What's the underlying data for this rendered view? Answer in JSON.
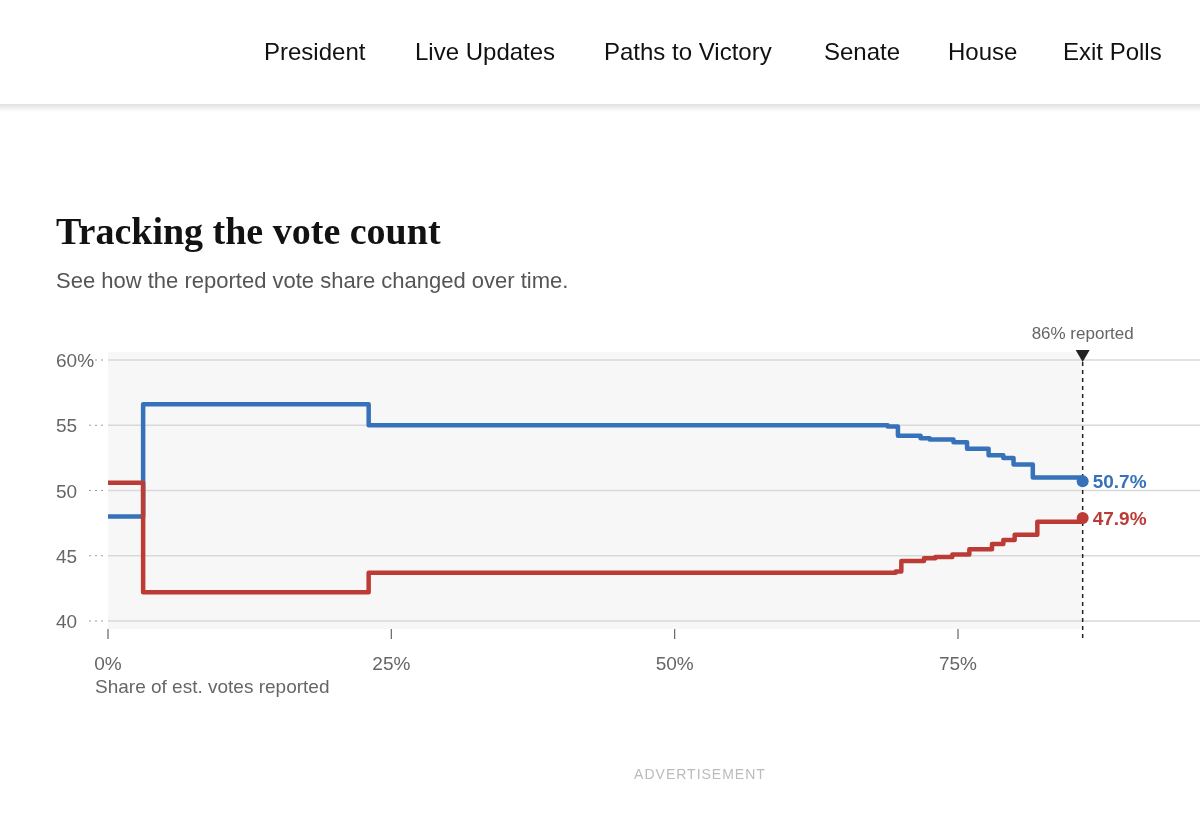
{
  "chart_data": {
    "type": "step",
    "title": "Tracking the vote count",
    "subtitle": "See how the reported vote share changed over time.",
    "xlabel": "Share of est. votes reported",
    "annotations": [
      "President",
      "Live Updates",
      "Paths to Victory",
      "Senate",
      "House",
      "Exit Polls",
      "ADVERTISEMENT"
    ],
    "xlim": [
      0,
      96
    ],
    "xticks": [
      {
        "value": 0,
        "label": "0%"
      },
      {
        "value": 25,
        "label": "25%"
      },
      {
        "value": 50,
        "label": "50%"
      },
      {
        "value": 75,
        "label": "75%"
      }
    ],
    "ylim": [
      40,
      60
    ],
    "yticks": [
      40,
      45,
      50,
      55,
      {
        "value": 60,
        "label": "60%"
      }
    ],
    "grid": "y",
    "bands": [
      {
        "axis": "x",
        "from": 0,
        "to": 86,
        "color": "#f7f7f7"
      }
    ],
    "ref_lines": [
      {
        "axis": "x",
        "value": 86,
        "label": "86% reported",
        "color": "#222222",
        "line_style": "dashed"
      }
    ],
    "series": [
      {
        "color": "#3672b9",
        "x": [
          0,
          3.1,
          23,
          68.8,
          69.7,
          71.7,
          72.5,
          74.6,
          75.8,
          77.7,
          79,
          79.9,
          81.6,
          86
        ],
        "values": [
          48.0,
          56.6,
          55.0,
          54.9,
          54.2,
          54.0,
          53.9,
          53.7,
          53.2,
          52.7,
          52.5,
          52.0,
          51.0,
          50.7
        ],
        "value_labels": [
          null,
          null,
          null,
          null,
          null,
          null,
          null,
          null,
          null,
          null,
          null,
          null,
          null,
          "50.7%"
        ]
      },
      {
        "color": "#bd3b35",
        "x": [
          0,
          3.1,
          23,
          69.5,
          70,
          72,
          73,
          74.5,
          76,
          78,
          79,
          80,
          82,
          86
        ],
        "values": [
          50.6,
          42.2,
          43.7,
          43.8,
          44.6,
          44.8,
          44.9,
          45.1,
          45.5,
          45.9,
          46.2,
          46.6,
          47.6,
          47.9
        ],
        "value_labels": [
          null,
          null,
          null,
          null,
          null,
          null,
          null,
          null,
          null,
          null,
          null,
          null,
          null,
          "47.9%"
        ]
      }
    ]
  }
}
